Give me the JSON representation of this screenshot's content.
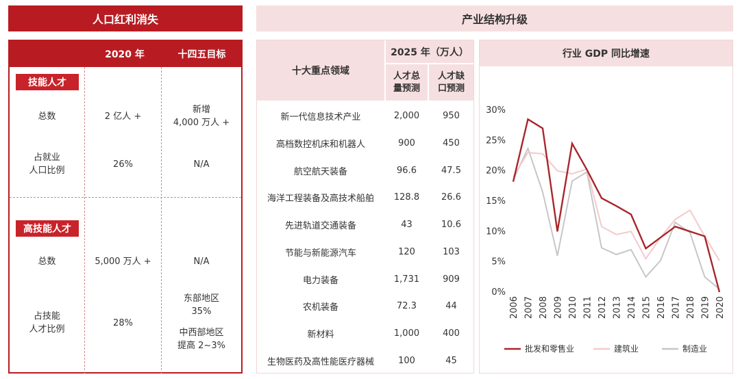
{
  "headers": {
    "left": "人口红利消失",
    "right": "产业结构升级"
  },
  "left_table": {
    "col_2020": "2020 年",
    "col_target": "十四五目标",
    "sections": [
      {
        "badge": "技能人才",
        "rows": [
          {
            "label": "总数",
            "v2020": "2 亿人 +",
            "target": "新增\n4,000 万人 +"
          },
          {
            "label": "占就业\n人口比例",
            "v2020": "26%",
            "target": "N/A"
          }
        ]
      },
      {
        "badge": "高技能人才",
        "rows": [
          {
            "label": "总数",
            "v2020": "5,000 万人 +",
            "target": "N/A"
          },
          {
            "label": "占技能\n人才比例",
            "v2020": "28%",
            "target_a": "东部地区\n35%",
            "target_b": "中西部地区\n提高 2~3%"
          }
        ]
      }
    ]
  },
  "mid_table": {
    "col_field": "十大重点领域",
    "col_group": "2025 年（万人）",
    "col_total": "人才总\n量预测",
    "col_gap": "人才缺\n口预测",
    "rows": [
      {
        "field": "新一代信息技术产业",
        "total": "2,000",
        "gap": "950"
      },
      {
        "field": "高档数控机床和机器人",
        "total": "900",
        "gap": "450"
      },
      {
        "field": "航空航天装备",
        "total": "96.6",
        "gap": "47.5"
      },
      {
        "field": "海洋工程装备及高技术船舶",
        "total": "128.8",
        "gap": "26.6"
      },
      {
        "field": "先进轨道交通装备",
        "total": "43",
        "gap": "10.6"
      },
      {
        "field": "节能与新能源汽车",
        "total": "120",
        "gap": "103"
      },
      {
        "field": "电力装备",
        "total": "1,731",
        "gap": "909"
      },
      {
        "field": "农机装备",
        "total": "72.3",
        "gap": "44"
      },
      {
        "field": "新材料",
        "total": "1,000",
        "gap": "400"
      },
      {
        "field": "生物医药及高性能医疗器械",
        "total": "100",
        "gap": "45"
      }
    ]
  },
  "chart_data": {
    "type": "line",
    "title": "行业 GDP 同比增速",
    "x": [
      "2006",
      "2007",
      "2008",
      "2009",
      "2010",
      "2011",
      "2012",
      "2013",
      "2014",
      "2015",
      "2016",
      "2017",
      "2018",
      "2019",
      "2020"
    ],
    "y_ticks": [
      "0%",
      "5%",
      "10%",
      "15%",
      "20%",
      "25%",
      "30%"
    ],
    "ylim": [
      0,
      30
    ],
    "legend_position": "bottom",
    "series": [
      {
        "name": "批发和零售业",
        "color": "#a8262b",
        "values": [
          18.2,
          28.5,
          27.0,
          10.0,
          24.5,
          20.2,
          15.5,
          14.2,
          12.8,
          7.2,
          9.0,
          10.8,
          10.0,
          9.2,
          0.0
        ]
      },
      {
        "name": "建筑业",
        "color": "#f4c9cb",
        "values": [
          19.0,
          23.0,
          22.8,
          20.0,
          19.5,
          20.3,
          10.8,
          9.5,
          10.0,
          5.5,
          9.0,
          12.0,
          13.5,
          9.2,
          5.2
        ]
      },
      {
        "name": "制造业",
        "color": "#c6c6c6",
        "values": [
          18.5,
          23.7,
          16.5,
          6.0,
          18.3,
          19.8,
          7.3,
          6.2,
          7.0,
          2.5,
          5.2,
          11.5,
          9.8,
          2.5,
          0.5
        ]
      }
    ]
  }
}
